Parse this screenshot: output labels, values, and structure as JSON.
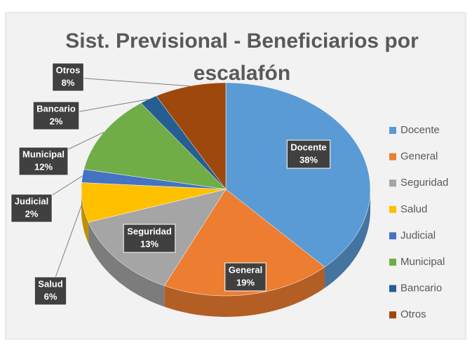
{
  "chart_data": {
    "type": "pie",
    "title": "Sist. Previsional - Beneficiarios por escalafón",
    "categories": [
      "Docente",
      "General",
      "Seguridad",
      "Salud",
      "Judicial",
      "Municipal",
      "Bancario",
      "Otros"
    ],
    "values": [
      38,
      19,
      13,
      6,
      2,
      12,
      2,
      8
    ],
    "value_labels": [
      "38%",
      "19%",
      "13%",
      "6%",
      "2%",
      "12%",
      "2%",
      "8%"
    ],
    "colors": [
      "#5b9bd5",
      "#ed7d31",
      "#a5a5a5",
      "#ffc000",
      "#4472c4",
      "#70ad47",
      "#255e91",
      "#9e480e"
    ],
    "legend": "right"
  }
}
